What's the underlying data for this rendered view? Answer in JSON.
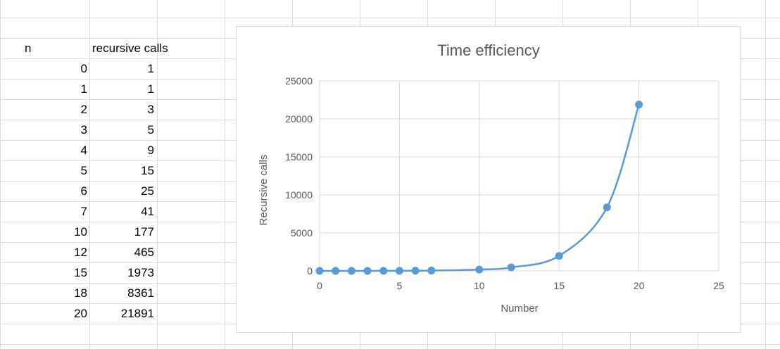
{
  "sheet": {
    "headers": {
      "n": "n",
      "calls": "recursive calls"
    },
    "rows": [
      {
        "n": "0",
        "calls": "1"
      },
      {
        "n": "1",
        "calls": "1"
      },
      {
        "n": "2",
        "calls": "3"
      },
      {
        "n": "3",
        "calls": "5"
      },
      {
        "n": "4",
        "calls": "9"
      },
      {
        "n": "5",
        "calls": "15"
      },
      {
        "n": "6",
        "calls": "25"
      },
      {
        "n": "7",
        "calls": "41"
      },
      {
        "n": "10",
        "calls": "177"
      },
      {
        "n": "12",
        "calls": "465"
      },
      {
        "n": "15",
        "calls": "1973"
      },
      {
        "n": "18",
        "calls": "8361"
      },
      {
        "n": "20",
        "calls": "21891"
      }
    ]
  },
  "chart_data": {
    "type": "scatter",
    "title": "Time efficiency",
    "xlabel": "Number",
    "ylabel": "Recursive calls",
    "xlim": [
      0,
      25
    ],
    "ylim": [
      0,
      25000
    ],
    "x_ticks": [
      0,
      5,
      10,
      15,
      20,
      25
    ],
    "y_ticks": [
      0,
      5000,
      10000,
      15000,
      20000,
      25000
    ],
    "grid": true,
    "smooth_line": true,
    "legend": "none",
    "series_color": "#5b9bd5",
    "series": [
      {
        "x": [
          0,
          1,
          2,
          3,
          4,
          5,
          6,
          7,
          10,
          12,
          15,
          18,
          20
        ],
        "y": [
          1,
          1,
          3,
          5,
          9,
          15,
          25,
          41,
          177,
          465,
          1973,
          8361,
          21891
        ]
      }
    ]
  }
}
